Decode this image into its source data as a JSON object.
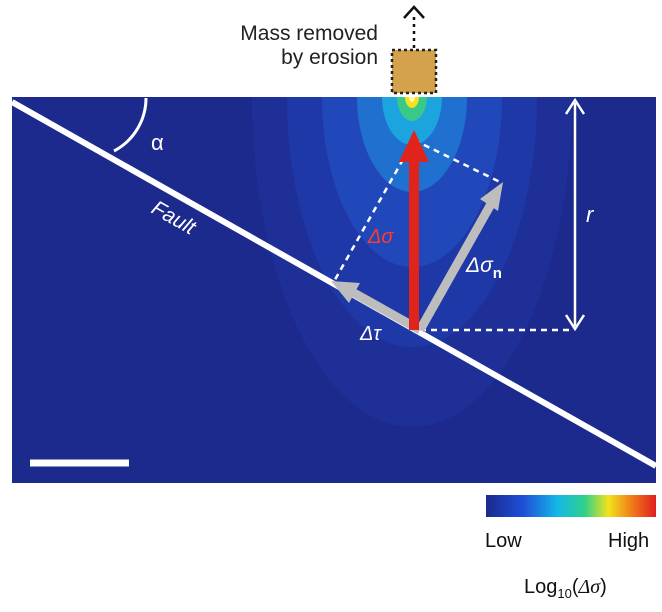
{
  "annotation": {
    "line1": "Mass removed",
    "line2": "by erosion"
  },
  "labels": {
    "alpha": "α",
    "fault": "Fault",
    "r": "r",
    "delta_sigma": "Δσ",
    "delta_sigma_n_main": "Δσ",
    "delta_sigma_n_sub": "n",
    "delta_tau": "Δτ"
  },
  "colorbar": {
    "low": "Low",
    "high": "High",
    "title_prefix": "Log",
    "title_sub": "10",
    "title_open": "(",
    "title_var": "Δσ",
    "title_close": ")",
    "colors": [
      "#1b2a8c",
      "#1f4fd8",
      "#14b8e8",
      "#2fd08a",
      "#f2e21c",
      "#f07a1a",
      "#e01e1e"
    ]
  },
  "colors": {
    "background_field": "#1b2a8c",
    "fault_line": "#ffffff",
    "delta_sigma_arrow": "#e0241c",
    "component_arrows": "#bdbdbd",
    "mass_block": "#d4a24c"
  }
}
